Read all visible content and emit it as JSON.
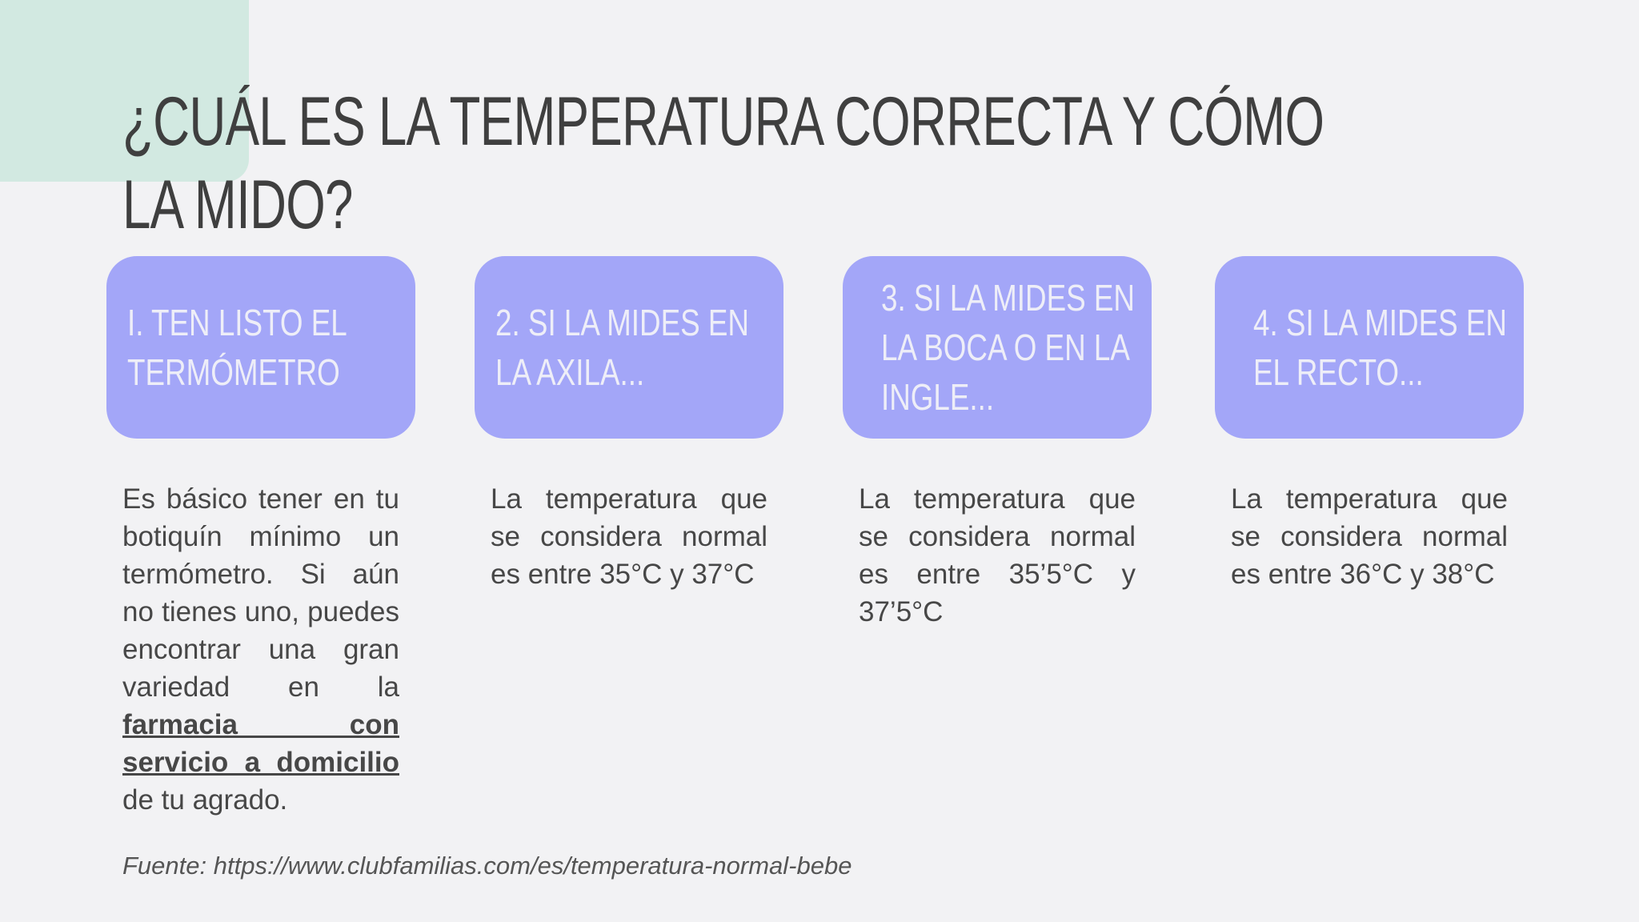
{
  "title": "¿CUÁL ES LA TEMPERATURA CORRECTA Y CÓMO LA MIDO?",
  "steps": [
    {
      "heading": "I. TEN LISTO EL TERMÓMETRO",
      "body": [
        "Es básico tener en tu botiquín mínimo un termómetro. Si aún no tienes uno, puedes encontrar una gran variedad en la ",
        "farmacia con servicio a domicilio",
        " de tu agrado."
      ]
    },
    {
      "heading": "2. SI LA MIDES EN LA AXILA...",
      "body": [
        "La temperatura que se considera normal es entre 35°C y 37°C"
      ]
    },
    {
      "heading": "3. SI LA MIDES EN LA BOCA O EN LA INGLE...",
      "body": [
        "La temperatura que se considera normal es entre 35’5°C y 37’5°C"
      ]
    },
    {
      "heading": "4. SI LA MIDES EN EL RECTO...",
      "body": [
        "La temperatura que se considera normal es entre 36°C y 38°C"
      ]
    }
  ],
  "source": "Fuente: https://www.clubfamilias.com/es/temperatura-normal-bebe"
}
